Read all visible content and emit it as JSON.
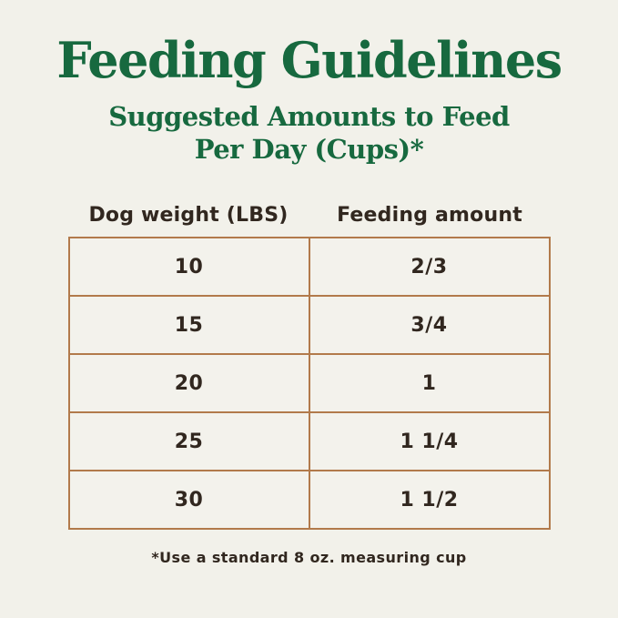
{
  "page": {
    "title": "Feeding Guidelines",
    "subtitle_line1": "Suggested Amounts to Feed",
    "subtitle_line2": "Per Day (Cups)*",
    "footnote": "*Use a standard 8 oz. measuring cup"
  },
  "table": {
    "columns": [
      "Dog weight (LBS)",
      "Feeding amount"
    ],
    "rows": [
      [
        "10",
        "2/3"
      ],
      [
        "15",
        "3/4"
      ],
      [
        "20",
        "1"
      ],
      [
        "25",
        "1 1/4"
      ],
      [
        "30",
        "1 1/2"
      ]
    ]
  },
  "colors": {
    "heading_green": "#17693f",
    "table_border": "#b27a4b",
    "background": "#f2f1ea",
    "body_text": "#31271f"
  },
  "chart_data": {
    "type": "table",
    "title": "Feeding Guidelines",
    "subtitle": "Suggested Amounts to Feed Per Day (Cups)*",
    "columns": [
      "Dog weight (LBS)",
      "Feeding amount"
    ],
    "rows": [
      [
        "10",
        "2/3"
      ],
      [
        "15",
        "3/4"
      ],
      [
        "20",
        "1"
      ],
      [
        "25",
        "1 1/4"
      ],
      [
        "30",
        "1 1/2"
      ]
    ],
    "footnote": "*Use a standard 8 oz. measuring cup"
  }
}
